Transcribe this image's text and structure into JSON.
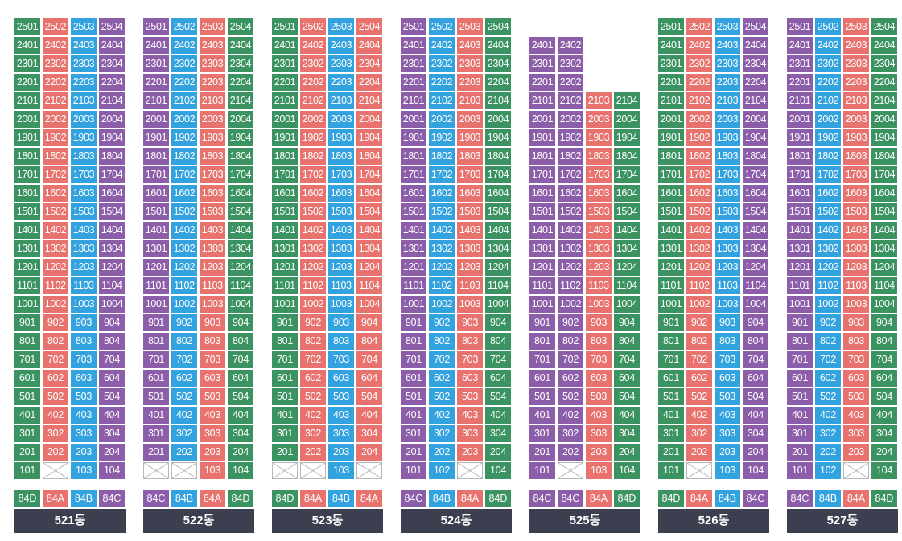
{
  "colors": {
    "84A": "#e8736e",
    "84B": "#33a3e0",
    "84C": "#8c5da8",
    "84D": "#3b9361",
    "empty": "#ffffff"
  },
  "buildings": [
    {
      "name": "521동",
      "floors_by_col": [
        25,
        25,
        25,
        25
      ],
      "types": [
        "84D",
        "84A",
        "84B",
        "84C"
      ],
      "vacant": [
        "102"
      ]
    },
    {
      "name": "522동",
      "floors_by_col": [
        25,
        25,
        25,
        25
      ],
      "types": [
        "84C",
        "84B",
        "84A",
        "84D"
      ],
      "vacant": [
        "101",
        "102"
      ]
    },
    {
      "name": "523동",
      "floors_by_col": [
        25,
        25,
        25,
        25
      ],
      "types": [
        "84D",
        "84A",
        "84B",
        "84A"
      ],
      "vacant": [
        "101",
        "102",
        "104"
      ]
    },
    {
      "name": "524동",
      "floors_by_col": [
        25,
        25,
        25,
        25
      ],
      "types": [
        "84C",
        "84B",
        "84A",
        "84D"
      ],
      "vacant": [
        "103"
      ]
    },
    {
      "name": "525동",
      "floors_by_col": [
        24,
        24,
        21,
        21
      ],
      "types": [
        "84C",
        "84C",
        "84A",
        "84D"
      ],
      "vacant": [
        "102"
      ]
    },
    {
      "name": "526동",
      "floors_by_col": [
        25,
        25,
        25,
        25
      ],
      "types": [
        "84D",
        "84A",
        "84B",
        "84C"
      ],
      "vacant": [
        "102"
      ]
    },
    {
      "name": "527동",
      "floors_by_col": [
        25,
        25,
        25,
        25
      ],
      "types": [
        "84C",
        "84B",
        "84A",
        "84D"
      ],
      "vacant": [
        "103"
      ]
    }
  ]
}
